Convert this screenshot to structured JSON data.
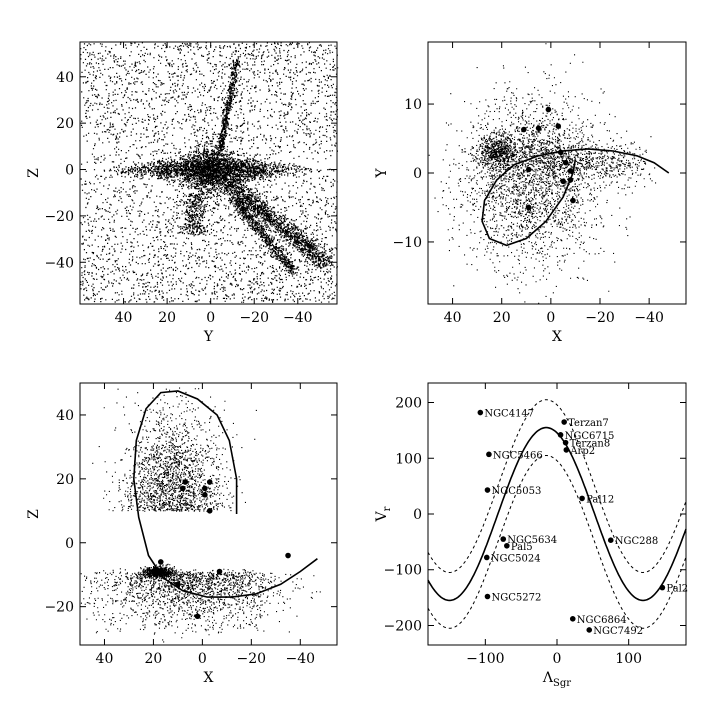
{
  "chart_data": [
    {
      "id": "yz",
      "type": "scatter",
      "xlabel": "Y",
      "ylabel": "Z",
      "xlim": [
        60,
        -58
      ],
      "ylim": [
        -58,
        55
      ],
      "xticks": [
        40,
        20,
        0,
        -20,
        -40
      ],
      "yticks": [
        -40,
        -20,
        0,
        20,
        40
      ],
      "xtick_labels": [
        "40",
        "20",
        "0",
        "−20",
        "−40"
      ],
      "ytick_labels": [
        "−40",
        "−20",
        "0",
        "20",
        "40"
      ],
      "point_cloud": "dense N-body particle distribution: thin disc along Z=0, stream arcs toward lower right"
    },
    {
      "id": "xy",
      "type": "scatter",
      "xlabel": "X",
      "ylabel": "Y",
      "xlim": [
        50,
        -55
      ],
      "ylim": [
        -19,
        19
      ],
      "xticks": [
        40,
        20,
        0,
        -20,
        -40
      ],
      "yticks": [
        -10,
        0,
        10
      ],
      "xtick_labels": [
        "40",
        "20",
        "0",
        "−20",
        "−40"
      ],
      "ytick_labels": [
        "−10",
        "0",
        "10"
      ],
      "orbit": [
        [
          -48,
          0
        ],
        [
          -42,
          1.5
        ],
        [
          -35,
          2.5
        ],
        [
          -25,
          3.2
        ],
        [
          -15,
          3.5
        ],
        [
          -5,
          3.2
        ],
        [
          5,
          2.5
        ],
        [
          15,
          1.2
        ],
        [
          22,
          -1
        ],
        [
          27,
          -4
        ],
        [
          28,
          -7
        ],
        [
          25,
          -9.5
        ],
        [
          18,
          -10.5
        ],
        [
          10,
          -9.5
        ],
        [
          2,
          -7
        ],
        [
          -5,
          -3.5
        ],
        [
          -9,
          0
        ],
        [
          -10,
          2
        ]
      ],
      "clusters": [
        [
          1,
          9.2
        ],
        [
          -3,
          6.8
        ],
        [
          5,
          6.5
        ],
        [
          11,
          6.3
        ],
        [
          -4,
          3
        ],
        [
          9,
          0.5
        ],
        [
          -6,
          1.5
        ],
        [
          -8,
          0.3
        ],
        [
          -5,
          -1.2
        ],
        [
          -8,
          -1
        ],
        [
          -9,
          -4
        ],
        [
          9,
          -5
        ]
      ]
    },
    {
      "id": "xz",
      "type": "scatter",
      "xlabel": "X",
      "ylabel": "Z",
      "xlim": [
        50,
        -55
      ],
      "ylim": [
        -32,
        50
      ],
      "xticks": [
        40,
        20,
        0,
        -20,
        -40
      ],
      "yticks": [
        -20,
        0,
        20,
        40
      ],
      "xtick_labels": [
        "40",
        "20",
        "0",
        "−20",
        "−40"
      ],
      "ytick_labels": [
        "−20",
        "0",
        "20",
        "40"
      ],
      "orbit": [
        [
          -14,
          9
        ],
        [
          -14,
          20
        ],
        [
          -11,
          32
        ],
        [
          -6,
          40
        ],
        [
          2,
          45
        ],
        [
          10,
          47.5
        ],
        [
          17,
          47
        ],
        [
          23,
          42
        ],
        [
          27,
          32
        ],
        [
          28,
          20
        ],
        [
          26,
          8
        ],
        [
          22,
          -4
        ],
        [
          16,
          -11
        ],
        [
          8,
          -15
        ],
        [
          -2,
          -17
        ],
        [
          -12,
          -17
        ],
        [
          -22,
          -16
        ],
        [
          -32,
          -13
        ],
        [
          -40,
          -9
        ],
        [
          -47,
          -5
        ]
      ],
      "clusters": [
        [
          7,
          19
        ],
        [
          -3,
          19
        ],
        [
          8,
          17
        ],
        [
          -1,
          17
        ],
        [
          -1,
          15
        ],
        [
          -3,
          10
        ],
        [
          -35,
          -4
        ],
        [
          -7,
          -9
        ],
        [
          17,
          -6
        ],
        [
          2,
          -23
        ],
        [
          10,
          -13
        ]
      ]
    },
    {
      "id": "lv",
      "type": "scatter",
      "xlabel": "Λ",
      "xlabel_sub": "Sgr",
      "ylabel": "V",
      "ylabel_sub": "r",
      "xlim": [
        -180,
        180
      ],
      "ylim": [
        -235,
        235
      ],
      "xticks": [
        -100,
        0,
        100
      ],
      "yticks": [
        -200,
        -100,
        0,
        100,
        200
      ],
      "xtick_labels": [
        "−100",
        "0",
        "100"
      ],
      "ytick_labels": [
        "−200",
        "−100",
        "0",
        "100",
        "200"
      ],
      "model": {
        "amplitude": 155,
        "period": 270,
        "phase_peak": -15,
        "band": 50
      },
      "clusters": [
        {
          "name": "NGC4147",
          "x": -107,
          "y": 182
        },
        {
          "name": "Terzan7",
          "x": 10,
          "y": 165
        },
        {
          "name": "NGC6715",
          "x": 5,
          "y": 142
        },
        {
          "name": "Terzan8",
          "x": 12,
          "y": 128
        },
        {
          "name": "Arp2",
          "x": 13,
          "y": 115
        },
        {
          "name": "NGC5466",
          "x": -95,
          "y": 107
        },
        {
          "name": "NGC5053",
          "x": -97,
          "y": 43
        },
        {
          "name": "Pal12",
          "x": 35,
          "y": 28
        },
        {
          "name": "NGC5634",
          "x": -75,
          "y": -45
        },
        {
          "name": "Pal5",
          "x": -70,
          "y": -57
        },
        {
          "name": "NGC288",
          "x": 75,
          "y": -47
        },
        {
          "name": "NGC5024",
          "x": -98,
          "y": -78
        },
        {
          "name": "Pal2",
          "x": 147,
          "y": -132
        },
        {
          "name": "NGC5272",
          "x": -97,
          "y": -148
        },
        {
          "name": "NGC6864",
          "x": 22,
          "y": -188
        },
        {
          "name": "NGC7492",
          "x": 45,
          "y": -208
        }
      ]
    }
  ]
}
